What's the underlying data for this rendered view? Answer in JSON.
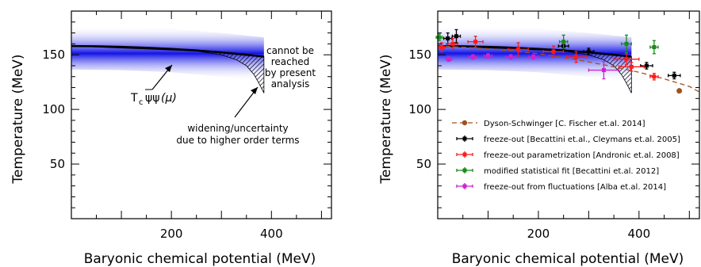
{
  "chart_data": [
    {
      "type": "area",
      "title": "",
      "xlabel": "Baryonic chemical potential (MeV)",
      "ylabel": "Temperature (MeV)",
      "xlim": [
        0,
        520
      ],
      "ylim": [
        0,
        190
      ],
      "xticks": [
        200,
        400
      ],
      "xtick_labels": [
        "200",
        "400"
      ],
      "yticks": [
        50,
        100,
        150
      ],
      "ytick_labels": [
        "50",
        "100",
        "150"
      ],
      "grid": false,
      "band": {
        "mu_max": 385,
        "center": [
          [
            0,
            156.5
          ],
          [
            100,
            156
          ],
          [
            200,
            154
          ],
          [
            300,
            150
          ],
          [
            385,
            146
          ]
        ],
        "half_width": 20
      },
      "transition_line": {
        "x": [
          0,
          50,
          100,
          150,
          200,
          250,
          300,
          350,
          385
        ],
        "y": [
          158,
          157.8,
          157.3,
          156.5,
          155.4,
          154,
          152.2,
          150,
          148.3
        ]
      },
      "uncertainty_lower": {
        "x": [
          0,
          250,
          300,
          330,
          350,
          365,
          375,
          385
        ],
        "y": [
          158,
          153.5,
          150,
          145.5,
          140,
          132,
          124,
          115
        ]
      },
      "annotations": {
        "cannot_reach": [
          "cannot be",
          "reached",
          "by present",
          "analysis"
        ],
        "tc_label": "T",
        "tc_sub": "c",
        "tc_tail": "(μ)",
        "widening": [
          "widening/uncertainty",
          "due to higher order terms"
        ]
      }
    },
    {
      "type": "scatter",
      "title": "",
      "xlabel": "Baryonic chemical potential (MeV)",
      "ylabel": "Temperature (MeV)",
      "xlim": [
        0,
        520
      ],
      "ylim": [
        0,
        190
      ],
      "xticks": [
        200,
        400
      ],
      "xtick_labels": [
        "200",
        "400"
      ],
      "yticks": [
        50,
        100,
        150
      ],
      "ytick_labels": [
        "50",
        "100",
        "150"
      ],
      "grid": false,
      "legend_position": "lower-right",
      "series": [
        {
          "name": "Dyson-Schwinger [C. Fischer et.al. 2014]",
          "color": "#a0521e",
          "style": "dashed-line-with-marker",
          "line": {
            "x": [
              0,
              50,
              100,
              150,
              200,
              250,
              300,
              350,
              400,
              450,
              500,
              520
            ],
            "y": [
              158,
              157,
              155.5,
              153.5,
              151,
              147.5,
              143.5,
              139,
              134,
              128,
              121,
              116
            ]
          },
          "points": [
            {
              "x": 480,
              "y": 117
            }
          ]
        },
        {
          "name": "freeze-out [Becattini et.al., Cleymans et.al. 2005]",
          "color": "#000000",
          "points": [
            {
              "x": 20,
              "y": 165,
              "xerr": 8,
              "yerr": 5
            },
            {
              "x": 37,
              "y": 167,
              "xerr": 8,
              "yerr": 6
            },
            {
              "x": 250,
              "y": 158,
              "xerr": 10,
              "yerr": 5
            },
            {
              "x": 300,
              "y": 153,
              "xerr": 10,
              "yerr": 3
            },
            {
              "x": 415,
              "y": 140,
              "xerr": 12,
              "yerr": 3
            },
            {
              "x": 470,
              "y": 131,
              "xerr": 12,
              "yerr": 3
            }
          ]
        },
        {
          "name": "freeze-out parametrization [Andronic et.al. 2008]",
          "color": "#ff1a1a",
          "points": [
            {
              "x": 8,
              "y": 157,
              "xerr": 6,
              "yerr": 4
            },
            {
              "x": 30,
              "y": 160,
              "xerr": 10,
              "yerr": 5
            },
            {
              "x": 75,
              "y": 162,
              "xerr": 15,
              "yerr": 5
            },
            {
              "x": 160,
              "y": 155,
              "xerr": 20,
              "yerr": 6
            },
            {
              "x": 230,
              "y": 153,
              "xerr": 20,
              "yerr": 5
            },
            {
              "x": 275,
              "y": 148,
              "xerr": 20,
              "yerr": 5
            },
            {
              "x": 375,
              "y": 146,
              "xerr": 25,
              "yerr": 5
            },
            {
              "x": 385,
              "y": 139,
              "xerr": 25,
              "yerr": 4
            },
            {
              "x": 430,
              "y": 130,
              "xerr": 8,
              "yerr": 3
            }
          ]
        },
        {
          "name": "modified statistical fit [Becattini et.al. 2012]",
          "color": "#1a8a1a",
          "points": [
            {
              "x": 3,
              "y": 166,
              "xerr": 6,
              "yerr": 3
            },
            {
              "x": 250,
              "y": 162,
              "xerr": 8,
              "yerr": 6
            },
            {
              "x": 375,
              "y": 160,
              "xerr": 10,
              "yerr": 8
            },
            {
              "x": 430,
              "y": 157,
              "xerr": 8,
              "yerr": 6
            }
          ]
        },
        {
          "name": "freeze-out from fluctuations [Alba et.al. 2014]",
          "color": "#cc22cc",
          "points": [
            {
              "x": 22,
              "y": 146,
              "xerr": 6,
              "yerr": 2
            },
            {
              "x": 70,
              "y": 148,
              "xerr": 8,
              "yerr": 2
            },
            {
              "x": 100,
              "y": 149,
              "xerr": 8,
              "yerr": 2
            },
            {
              "x": 145,
              "y": 148,
              "xerr": 10,
              "yerr": 2
            },
            {
              "x": 190,
              "y": 148,
              "xerr": 10,
              "yerr": 2
            },
            {
              "x": 330,
              "y": 136,
              "xerr": 30,
              "yerr": 8
            }
          ]
        }
      ]
    }
  ]
}
